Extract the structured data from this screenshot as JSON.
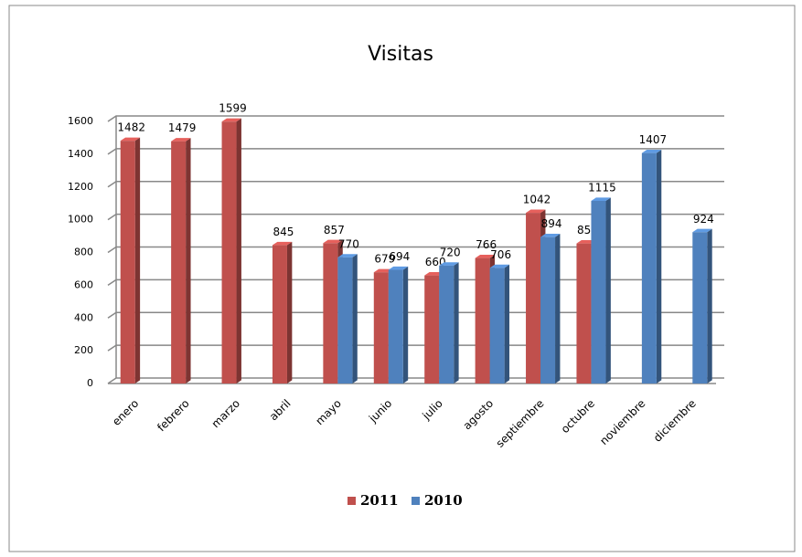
{
  "chart_data": {
    "type": "bar3d",
    "title": "Visitas",
    "categories": [
      "enero",
      "febrero",
      "marzo",
      "abril",
      "mayo",
      "junio",
      "julio",
      "agosto",
      "septiembre",
      "octubre",
      "noviembre",
      "diciembre"
    ],
    "series": [
      {
        "name": "2011",
        "color": "#c0504d",
        "values": [
          1482,
          1479,
          1599,
          845,
          857,
          679,
          660,
          766,
          1042,
          855,
          null,
          null
        ]
      },
      {
        "name": "2010",
        "color": "#4f81bd",
        "values": [
          null,
          null,
          null,
          null,
          770,
          694,
          720,
          706,
          894,
          1115,
          1407,
          924
        ]
      }
    ],
    "ylim": [
      0,
      1600
    ],
    "yticks": [
      0,
      200,
      400,
      600,
      800,
      1000,
      1200,
      1400,
      1600
    ],
    "grid": true,
    "legend": "bottom"
  }
}
